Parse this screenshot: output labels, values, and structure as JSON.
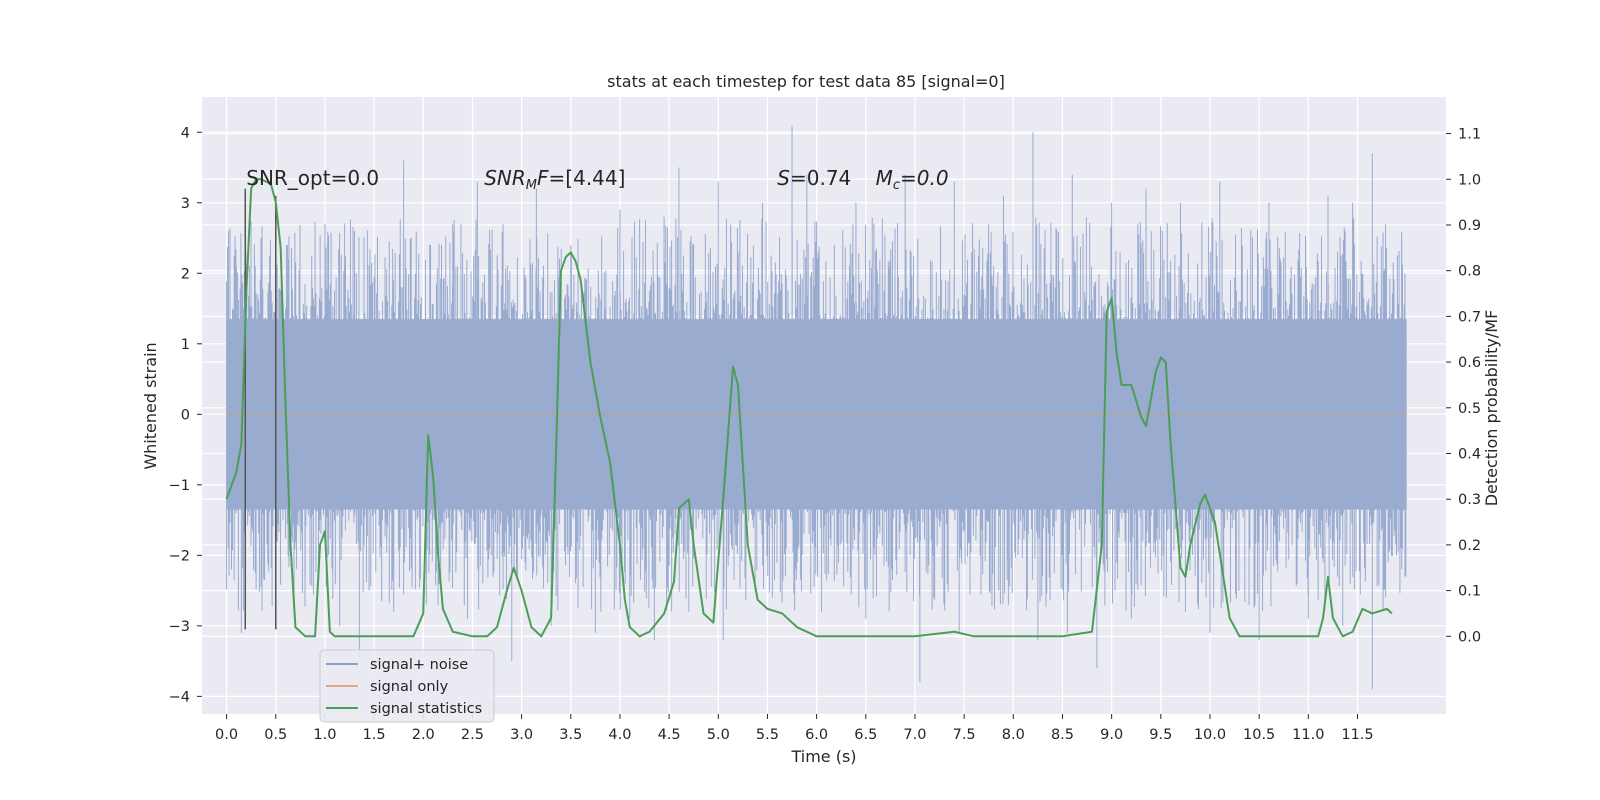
{
  "chart_data": {
    "type": "line",
    "title": "stats at each timestep for test data 85 [signal=0]",
    "xlabel": "Time (s)",
    "ylabel": "Whitened strain",
    "y2label": "Detection probability/MF",
    "xlim": [
      -0.25,
      12.4
    ],
    "ylim": [
      -4.25,
      4.5
    ],
    "y2lim": [
      -0.17,
      1.18
    ],
    "x_ticks": [
      "0.0",
      "0.5",
      "1.0",
      "1.5",
      "2.0",
      "2.5",
      "3.0",
      "3.5",
      "4.0",
      "4.5",
      "5.0",
      "5.5",
      "6.0",
      "6.5",
      "7.0",
      "7.5",
      "8.0",
      "8.5",
      "9.0",
      "9.5",
      "10.0",
      "10.5",
      "11.0",
      "11.5"
    ],
    "y_ticks": [
      "4",
      "3",
      "2",
      "1",
      "0",
      "−1",
      "−2",
      "−3",
      "−4"
    ],
    "y2_ticks": [
      "1.1",
      "1.0",
      "0.9",
      "0.8",
      "0.7",
      "0.6",
      "0.5",
      "0.4",
      "0.3",
      "0.2",
      "0.1",
      "0.0"
    ],
    "grid": true,
    "legend": {
      "placement": "lower-left",
      "entries": [
        {
          "label": "signal+ noise",
          "color": "#8da0cb"
        },
        {
          "label": "signal only",
          "color": "#e5a58b"
        },
        {
          "label": "signal statistics",
          "color": "#4c9e57"
        }
      ]
    },
    "annotations": [
      {
        "id": "snr-opt",
        "text": "SNR_opt=0.0",
        "x": 0.2,
        "y": 3.35
      },
      {
        "id": "snr-mf",
        "base": "SNR",
        "sub": "M",
        "rest": "F=[4.44]",
        "x": 2.62,
        "y": 3.35
      },
      {
        "id": "s-value",
        "italic": "S",
        "rest": "=0.74",
        "x": 5.6,
        "y": 3.35
      },
      {
        "id": "mc-value",
        "italic": "M",
        "sub": "c",
        "rest": "=0.0",
        "x": 6.6,
        "y": 3.35
      }
    ],
    "markers": [
      {
        "x": 0.19,
        "y_top": 3.2,
        "y_bottom": -3.05
      },
      {
        "x": 0.5,
        "y_top": 3.1,
        "y_bottom": -3.05
      }
    ],
    "noise_series": {
      "name": "signal+ noise",
      "x_range": [
        0.0,
        12.0
      ],
      "band": [
        -1.35,
        1.35
      ],
      "peaks_high": [
        [
          0.02,
          2.6
        ],
        [
          0.1,
          2.1
        ],
        [
          0.35,
          2.5
        ],
        [
          0.62,
          2.4
        ],
        [
          0.9,
          2.1
        ],
        [
          1.0,
          2.7
        ],
        [
          1.3,
          2.6
        ],
        [
          1.8,
          3.6
        ],
        [
          2.3,
          2.7
        ],
        [
          2.55,
          3.3
        ],
        [
          3.15,
          3.2
        ],
        [
          3.5,
          2.4
        ],
        [
          4.0,
          2.9
        ],
        [
          4.6,
          3.5
        ],
        [
          5.0,
          3.3
        ],
        [
          5.45,
          3.0
        ],
        [
          5.75,
          4.1
        ],
        [
          5.9,
          3.4
        ],
        [
          6.4,
          3.0
        ],
        [
          6.9,
          3.4
        ],
        [
          7.4,
          3.3
        ],
        [
          7.9,
          3.1
        ],
        [
          8.2,
          4.0
        ],
        [
          8.6,
          3.4
        ],
        [
          9.0,
          3.0
        ],
        [
          9.35,
          3.2
        ],
        [
          9.7,
          3.0
        ],
        [
          10.1,
          3.3
        ],
        [
          10.6,
          3.0
        ],
        [
          11.2,
          3.1
        ],
        [
          11.45,
          3.0
        ],
        [
          11.65,
          3.7
        ],
        [
          11.95,
          2.5
        ]
      ],
      "peaks_low": [
        [
          0.05,
          -2.2
        ],
        [
          0.15,
          -3.1
        ],
        [
          0.5,
          -2.7
        ],
        [
          0.8,
          -2.3
        ],
        [
          1.15,
          -3.0
        ],
        [
          1.35,
          -3.5
        ],
        [
          1.7,
          -2.8
        ],
        [
          2.15,
          -2.7
        ],
        [
          2.45,
          -2.9
        ],
        [
          2.9,
          -3.5
        ],
        [
          3.3,
          -3.0
        ],
        [
          3.75,
          -3.1
        ],
        [
          4.1,
          -2.9
        ],
        [
          4.35,
          -3.2
        ],
        [
          4.7,
          -2.8
        ],
        [
          5.05,
          -3.2
        ],
        [
          5.55,
          -2.6
        ],
        [
          6.05,
          -2.8
        ],
        [
          6.5,
          -2.9
        ],
        [
          7.05,
          -3.8
        ],
        [
          7.45,
          -3.1
        ],
        [
          7.95,
          -2.7
        ],
        [
          8.25,
          -3.2
        ],
        [
          8.55,
          -3.1
        ],
        [
          8.85,
          -3.6
        ],
        [
          9.2,
          -2.9
        ],
        [
          9.75,
          -2.8
        ],
        [
          10.0,
          -3.1
        ],
        [
          10.5,
          -3.2
        ],
        [
          11.0,
          -2.9
        ],
        [
          11.35,
          -3.0
        ],
        [
          11.65,
          -3.9
        ],
        [
          11.95,
          -2.2
        ]
      ]
    },
    "signal_only": {
      "name": "signal only",
      "value": 0.0
    },
    "statistics_series": {
      "name": "signal statistics",
      "points": [
        [
          0.0,
          0.3
        ],
        [
          0.1,
          0.36
        ],
        [
          0.15,
          0.42
        ],
        [
          0.2,
          0.75
        ],
        [
          0.25,
          0.98
        ],
        [
          0.3,
          1.0
        ],
        [
          0.35,
          1.0
        ],
        [
          0.45,
          0.99
        ],
        [
          0.5,
          0.95
        ],
        [
          0.55,
          0.85
        ],
        [
          0.6,
          0.5
        ],
        [
          0.65,
          0.2
        ],
        [
          0.7,
          0.02
        ],
        [
          0.8,
          0.0
        ],
        [
          0.9,
          0.0
        ],
        [
          0.95,
          0.2
        ],
        [
          1.0,
          0.23
        ],
        [
          1.05,
          0.01
        ],
        [
          1.1,
          0.0
        ],
        [
          1.3,
          0.0
        ],
        [
          1.4,
          0.0
        ],
        [
          1.9,
          0.0
        ],
        [
          2.0,
          0.05
        ],
        [
          2.05,
          0.44
        ],
        [
          2.1,
          0.35
        ],
        [
          2.15,
          0.18
        ],
        [
          2.2,
          0.06
        ],
        [
          2.3,
          0.01
        ],
        [
          2.5,
          0.0
        ],
        [
          2.65,
          0.0
        ],
        [
          2.75,
          0.02
        ],
        [
          2.85,
          0.1
        ],
        [
          2.92,
          0.15
        ],
        [
          3.0,
          0.1
        ],
        [
          3.1,
          0.02
        ],
        [
          3.2,
          0.0
        ],
        [
          3.3,
          0.04
        ],
        [
          3.35,
          0.4
        ],
        [
          3.4,
          0.8
        ],
        [
          3.45,
          0.83
        ],
        [
          3.5,
          0.84
        ],
        [
          3.55,
          0.82
        ],
        [
          3.6,
          0.78
        ],
        [
          3.7,
          0.6
        ],
        [
          3.8,
          0.48
        ],
        [
          3.9,
          0.38
        ],
        [
          4.0,
          0.2
        ],
        [
          4.05,
          0.08
        ],
        [
          4.1,
          0.02
        ],
        [
          4.2,
          0.0
        ],
        [
          4.3,
          0.01
        ],
        [
          4.45,
          0.05
        ],
        [
          4.55,
          0.12
        ],
        [
          4.6,
          0.28
        ],
        [
          4.7,
          0.3
        ],
        [
          4.75,
          0.2
        ],
        [
          4.85,
          0.05
        ],
        [
          4.95,
          0.03
        ],
        [
          5.05,
          0.3
        ],
        [
          5.15,
          0.59
        ],
        [
          5.2,
          0.55
        ],
        [
          5.3,
          0.2
        ],
        [
          5.4,
          0.08
        ],
        [
          5.5,
          0.06
        ],
        [
          5.65,
          0.05
        ],
        [
          5.8,
          0.02
        ],
        [
          6.0,
          0.0
        ],
        [
          6.5,
          0.0
        ],
        [
          7.0,
          0.0
        ],
        [
          7.4,
          0.01
        ],
        [
          7.6,
          0.0
        ],
        [
          8.0,
          0.0
        ],
        [
          8.2,
          0.0
        ],
        [
          8.5,
          0.0
        ],
        [
          8.8,
          0.01
        ],
        [
          8.9,
          0.2
        ],
        [
          8.95,
          0.71
        ],
        [
          9.0,
          0.74
        ],
        [
          9.05,
          0.62
        ],
        [
          9.1,
          0.55
        ],
        [
          9.2,
          0.55
        ],
        [
          9.3,
          0.48
        ],
        [
          9.35,
          0.46
        ],
        [
          9.45,
          0.58
        ],
        [
          9.5,
          0.61
        ],
        [
          9.55,
          0.6
        ],
        [
          9.6,
          0.42
        ],
        [
          9.7,
          0.15
        ],
        [
          9.75,
          0.13
        ],
        [
          9.8,
          0.2
        ],
        [
          9.9,
          0.29
        ],
        [
          9.95,
          0.31
        ],
        [
          10.05,
          0.25
        ],
        [
          10.1,
          0.18
        ],
        [
          10.2,
          0.04
        ],
        [
          10.3,
          0.0
        ],
        [
          10.5,
          0.0
        ],
        [
          10.8,
          0.0
        ],
        [
          11.1,
          0.0
        ],
        [
          11.15,
          0.04
        ],
        [
          11.2,
          0.13
        ],
        [
          11.25,
          0.04
        ],
        [
          11.35,
          0.0
        ],
        [
          11.45,
          0.01
        ],
        [
          11.55,
          0.06
        ],
        [
          11.65,
          0.05
        ],
        [
          11.8,
          0.06
        ],
        [
          11.85,
          0.05
        ]
      ]
    }
  }
}
